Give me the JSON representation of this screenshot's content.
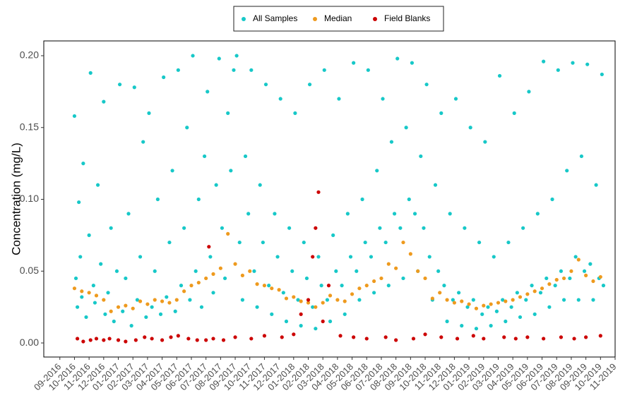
{
  "chart_data": {
    "type": "scatter",
    "y_label": "Concentration (mg/L)",
    "legend_position": "top",
    "xlim": [
      -1.1,
      38
    ],
    "ylim": [
      -0.0098,
      0.2103
    ],
    "xticks": [
      {
        "value": 0,
        "label": "09-2016"
      },
      {
        "value": 1,
        "label": "10-2016"
      },
      {
        "value": 2,
        "label": "11-2016"
      },
      {
        "value": 3,
        "label": "12-2016"
      },
      {
        "value": 4,
        "label": "01-2017"
      },
      {
        "value": 5,
        "label": "02-2017"
      },
      {
        "value": 6,
        "label": "03-2017"
      },
      {
        "value": 7,
        "label": "04-2017"
      },
      {
        "value": 8,
        "label": "05-2017"
      },
      {
        "value": 9,
        "label": "06-2017"
      },
      {
        "value": 10,
        "label": "07-2017"
      },
      {
        "value": 11,
        "label": "08-2017"
      },
      {
        "value": 12,
        "label": "09-2017"
      },
      {
        "value": 13,
        "label": "10-2017"
      },
      {
        "value": 14,
        "label": "11-2017"
      },
      {
        "value": 15,
        "label": "12-2017"
      },
      {
        "value": 16,
        "label": "01-2018"
      },
      {
        "value": 17,
        "label": "02-2018"
      },
      {
        "value": 18,
        "label": "03-2018"
      },
      {
        "value": 19,
        "label": "04-2018"
      },
      {
        "value": 20,
        "label": "05-2018"
      },
      {
        "value": 21,
        "label": "06-2018"
      },
      {
        "value": 22,
        "label": "07-2018"
      },
      {
        "value": 23,
        "label": "08-2018"
      },
      {
        "value": 24,
        "label": "09-2018"
      },
      {
        "value": 25,
        "label": "10-2018"
      },
      {
        "value": 26,
        "label": "11-2018"
      },
      {
        "value": 27,
        "label": "12-2018"
      },
      {
        "value": 28,
        "label": "01-2019"
      },
      {
        "value": 29,
        "label": "02-2019"
      },
      {
        "value": 30,
        "label": "03-2019"
      },
      {
        "value": 31,
        "label": "04-2019"
      },
      {
        "value": 32,
        "label": "05-2019"
      },
      {
        "value": 33,
        "label": "06-2019"
      },
      {
        "value": 34,
        "label": "07-2019"
      },
      {
        "value": 35,
        "label": "08-2019"
      },
      {
        "value": 36,
        "label": "09-2019"
      },
      {
        "value": 37,
        "label": "10-2019"
      },
      {
        "value": 38,
        "label": "11-2019"
      }
    ],
    "yticks": [
      {
        "value": 0,
        "label": "0.00"
      },
      0.05,
      {
        "value": 0.1,
        "label": "0.10"
      },
      0.15,
      {
        "value": 0.2,
        "label": "0.20"
      }
    ],
    "series": [
      {
        "name": "All Samples",
        "color": "#17C8C8",
        "x": [
          1.0,
          1.1,
          1.2,
          1.3,
          1.4,
          1.5,
          1.6,
          1.8,
          2.0,
          2.1,
          2.3,
          2.4,
          2.6,
          2.8,
          3.0,
          3.1,
          3.3,
          3.5,
          3.7,
          3.9,
          4.1,
          4.3,
          4.5,
          4.7,
          4.9,
          5.1,
          5.3,
          5.5,
          5.7,
          5.9,
          6.1,
          6.3,
          6.5,
          6.7,
          6.9,
          7.1,
          7.3,
          7.5,
          7.7,
          7.9,
          8.1,
          8.3,
          8.5,
          8.7,
          8.9,
          9.1,
          9.3,
          9.5,
          9.7,
          9.9,
          10.1,
          10.3,
          10.5,
          10.7,
          10.9,
          11.1,
          11.3,
          11.5,
          11.7,
          11.9,
          12.1,
          12.3,
          12.5,
          12.7,
          12.9,
          13.1,
          13.3,
          13.5,
          13.7,
          13.9,
          14.1,
          14.3,
          14.5,
          14.7,
          14.9,
          15.1,
          15.3,
          15.5,
          15.7,
          15.9,
          16.1,
          16.3,
          16.5,
          16.7,
          16.9,
          17.1,
          17.3,
          17.5,
          17.7,
          17.9,
          18.1,
          18.3,
          18.5,
          18.7,
          18.9,
          19.1,
          19.3,
          19.5,
          19.7,
          19.9,
          20.1,
          20.3,
          20.5,
          20.7,
          20.9,
          21.1,
          21.3,
          21.5,
          21.7,
          21.9,
          22.1,
          22.3,
          22.5,
          22.7,
          22.9,
          23.1,
          23.3,
          23.5,
          23.7,
          23.9,
          24.1,
          24.3,
          24.5,
          24.7,
          24.9,
          25.1,
          25.3,
          25.5,
          25.7,
          25.9,
          26.1,
          26.3,
          26.5,
          26.7,
          26.9,
          27.1,
          27.3,
          27.5,
          27.7,
          27.9,
          28.1,
          28.3,
          28.5,
          28.7,
          28.9,
          29.1,
          29.3,
          29.5,
          29.7,
          29.9,
          30.1,
          30.3,
          30.5,
          30.7,
          30.9,
          31.1,
          31.3,
          31.5,
          31.7,
          31.9,
          32.1,
          32.3,
          32.5,
          32.7,
          32.9,
          33.1,
          33.3,
          33.5,
          33.7,
          33.9,
          34.1,
          34.3,
          34.5,
          34.7,
          34.9,
          35.1,
          35.3,
          35.5,
          35.7,
          35.9,
          36.1,
          36.3,
          36.5,
          36.7,
          36.9,
          37.1,
          37.2
        ],
        "values": [
          0.158,
          0.045,
          0.025,
          0.098,
          0.06,
          0.032,
          0.125,
          0.018,
          0.075,
          0.188,
          0.04,
          0.028,
          0.11,
          0.055,
          0.168,
          0.02,
          0.035,
          0.08,
          0.015,
          0.05,
          0.18,
          0.022,
          0.045,
          0.09,
          0.012,
          0.178,
          0.03,
          0.06,
          0.14,
          0.018,
          0.16,
          0.025,
          0.05,
          0.1,
          0.02,
          0.185,
          0.032,
          0.07,
          0.12,
          0.022,
          0.19,
          0.04,
          0.08,
          0.15,
          0.03,
          0.2,
          0.05,
          0.1,
          0.025,
          0.13,
          0.175,
          0.06,
          0.035,
          0.11,
          0.198,
          0.08,
          0.045,
          0.16,
          0.12,
          0.19,
          0.2,
          0.07,
          0.03,
          0.13,
          0.09,
          0.19,
          0.05,
          0.025,
          0.11,
          0.07,
          0.18,
          0.04,
          0.02,
          0.09,
          0.06,
          0.17,
          0.035,
          0.015,
          0.08,
          0.05,
          0.16,
          0.03,
          0.012,
          0.07,
          0.045,
          0.18,
          0.025,
          0.01,
          0.06,
          0.04,
          0.19,
          0.03,
          0.015,
          0.075,
          0.05,
          0.17,
          0.04,
          0.02,
          0.09,
          0.06,
          0.195,
          0.05,
          0.03,
          0.1,
          0.07,
          0.19,
          0.06,
          0.035,
          0.12,
          0.08,
          0.17,
          0.07,
          0.04,
          0.14,
          0.09,
          0.198,
          0.08,
          0.045,
          0.15,
          0.1,
          0.195,
          0.09,
          0.05,
          0.13,
          0.08,
          0.18,
          0.06,
          0.03,
          0.11,
          0.05,
          0.16,
          0.04,
          0.015,
          0.09,
          0.03,
          0.17,
          0.035,
          0.012,
          0.08,
          0.025,
          0.15,
          0.03,
          0.01,
          0.07,
          0.02,
          0.14,
          0.025,
          0.012,
          0.06,
          0.022,
          0.186,
          0.03,
          0.015,
          0.07,
          0.025,
          0.16,
          0.035,
          0.018,
          0.08,
          0.03,
          0.175,
          0.04,
          0.02,
          0.09,
          0.035,
          0.196,
          0.045,
          0.025,
          0.1,
          0.04,
          0.19,
          0.05,
          0.03,
          0.12,
          0.045,
          0.195,
          0.06,
          0.03,
          0.13,
          0.05,
          0.194,
          0.055,
          0.03,
          0.11,
          0.045,
          0.187,
          0.04
        ]
      },
      {
        "name": "Median",
        "color": "#EE9A1E",
        "x": [
          1,
          1.5,
          2,
          2.5,
          3,
          3.5,
          4,
          4.5,
          5,
          5.5,
          6,
          6.5,
          7,
          7.5,
          8,
          8.5,
          9,
          9.5,
          10,
          10.5,
          11,
          11.5,
          12,
          12.5,
          13,
          13.5,
          14,
          14.5,
          15,
          15.5,
          16,
          16.5,
          17,
          17.5,
          18,
          18.5,
          19,
          19.5,
          20,
          20.5,
          21,
          21.5,
          22,
          22.5,
          23,
          23.5,
          24,
          24.5,
          25,
          25.5,
          26,
          26.5,
          27,
          27.5,
          28,
          28.5,
          29,
          29.5,
          30,
          30.5,
          31,
          31.5,
          32,
          32.5,
          33,
          33.5,
          34,
          34.5,
          35,
          35.5,
          36,
          36.5,
          37
        ],
        "values": [
          0.038,
          0.036,
          0.035,
          0.033,
          0.03,
          0.022,
          0.025,
          0.026,
          0.024,
          0.029,
          0.027,
          0.03,
          0.029,
          0.028,
          0.03,
          0.036,
          0.04,
          0.042,
          0.045,
          0.048,
          0.052,
          0.076,
          0.055,
          0.047,
          0.05,
          0.041,
          0.04,
          0.038,
          0.037,
          0.031,
          0.032,
          0.029,
          0.028,
          0.025,
          0.028,
          0.033,
          0.03,
          0.029,
          0.034,
          0.038,
          0.04,
          0.043,
          0.045,
          0.055,
          0.052,
          0.07,
          0.062,
          0.05,
          0.045,
          0.031,
          0.035,
          0.03,
          0.028,
          0.029,
          0.027,
          0.024,
          0.026,
          0.027,
          0.028,
          0.029,
          0.03,
          0.032,
          0.034,
          0.036,
          0.038,
          0.041,
          0.044,
          0.045,
          0.05,
          0.058,
          0.047,
          0.043,
          0.046
        ]
      },
      {
        "name": "Field Blanks",
        "color": "#CC0000",
        "x": [
          1.2,
          1.6,
          2.1,
          2.5,
          3.0,
          3.4,
          4.0,
          4.5,
          5.2,
          5.8,
          6.3,
          7.0,
          7.6,
          8.1,
          8.8,
          9.4,
          10.0,
          10.2,
          10.5,
          11.2,
          12.0,
          13.1,
          14.0,
          15.2,
          16.0,
          16.5,
          17.0,
          17.3,
          17.5,
          17.7,
          18.0,
          18.4,
          19.2,
          20.1,
          21.0,
          22.3,
          23.0,
          24.2,
          25.0,
          26.1,
          27.2,
          28.3,
          29.0,
          30.4,
          31.2,
          32.0,
          33.1,
          34.3,
          35.2,
          36.0,
          37.0
        ],
        "values": [
          0.003,
          0.001,
          0.002,
          0.003,
          0.002,
          0.003,
          0.002,
          0.001,
          0.002,
          0.004,
          0.003,
          0.002,
          0.004,
          0.005,
          0.003,
          0.002,
          0.002,
          0.067,
          0.003,
          0.002,
          0.004,
          0.003,
          0.005,
          0.004,
          0.006,
          0.02,
          0.03,
          0.06,
          0.08,
          0.105,
          0.015,
          0.04,
          0.005,
          0.004,
          0.003,
          0.004,
          0.002,
          0.003,
          0.006,
          0.004,
          0.003,
          0.005,
          0.003,
          0.004,
          0.003,
          0.004,
          0.003,
          0.004,
          0.003,
          0.004,
          0.005
        ]
      }
    ]
  }
}
